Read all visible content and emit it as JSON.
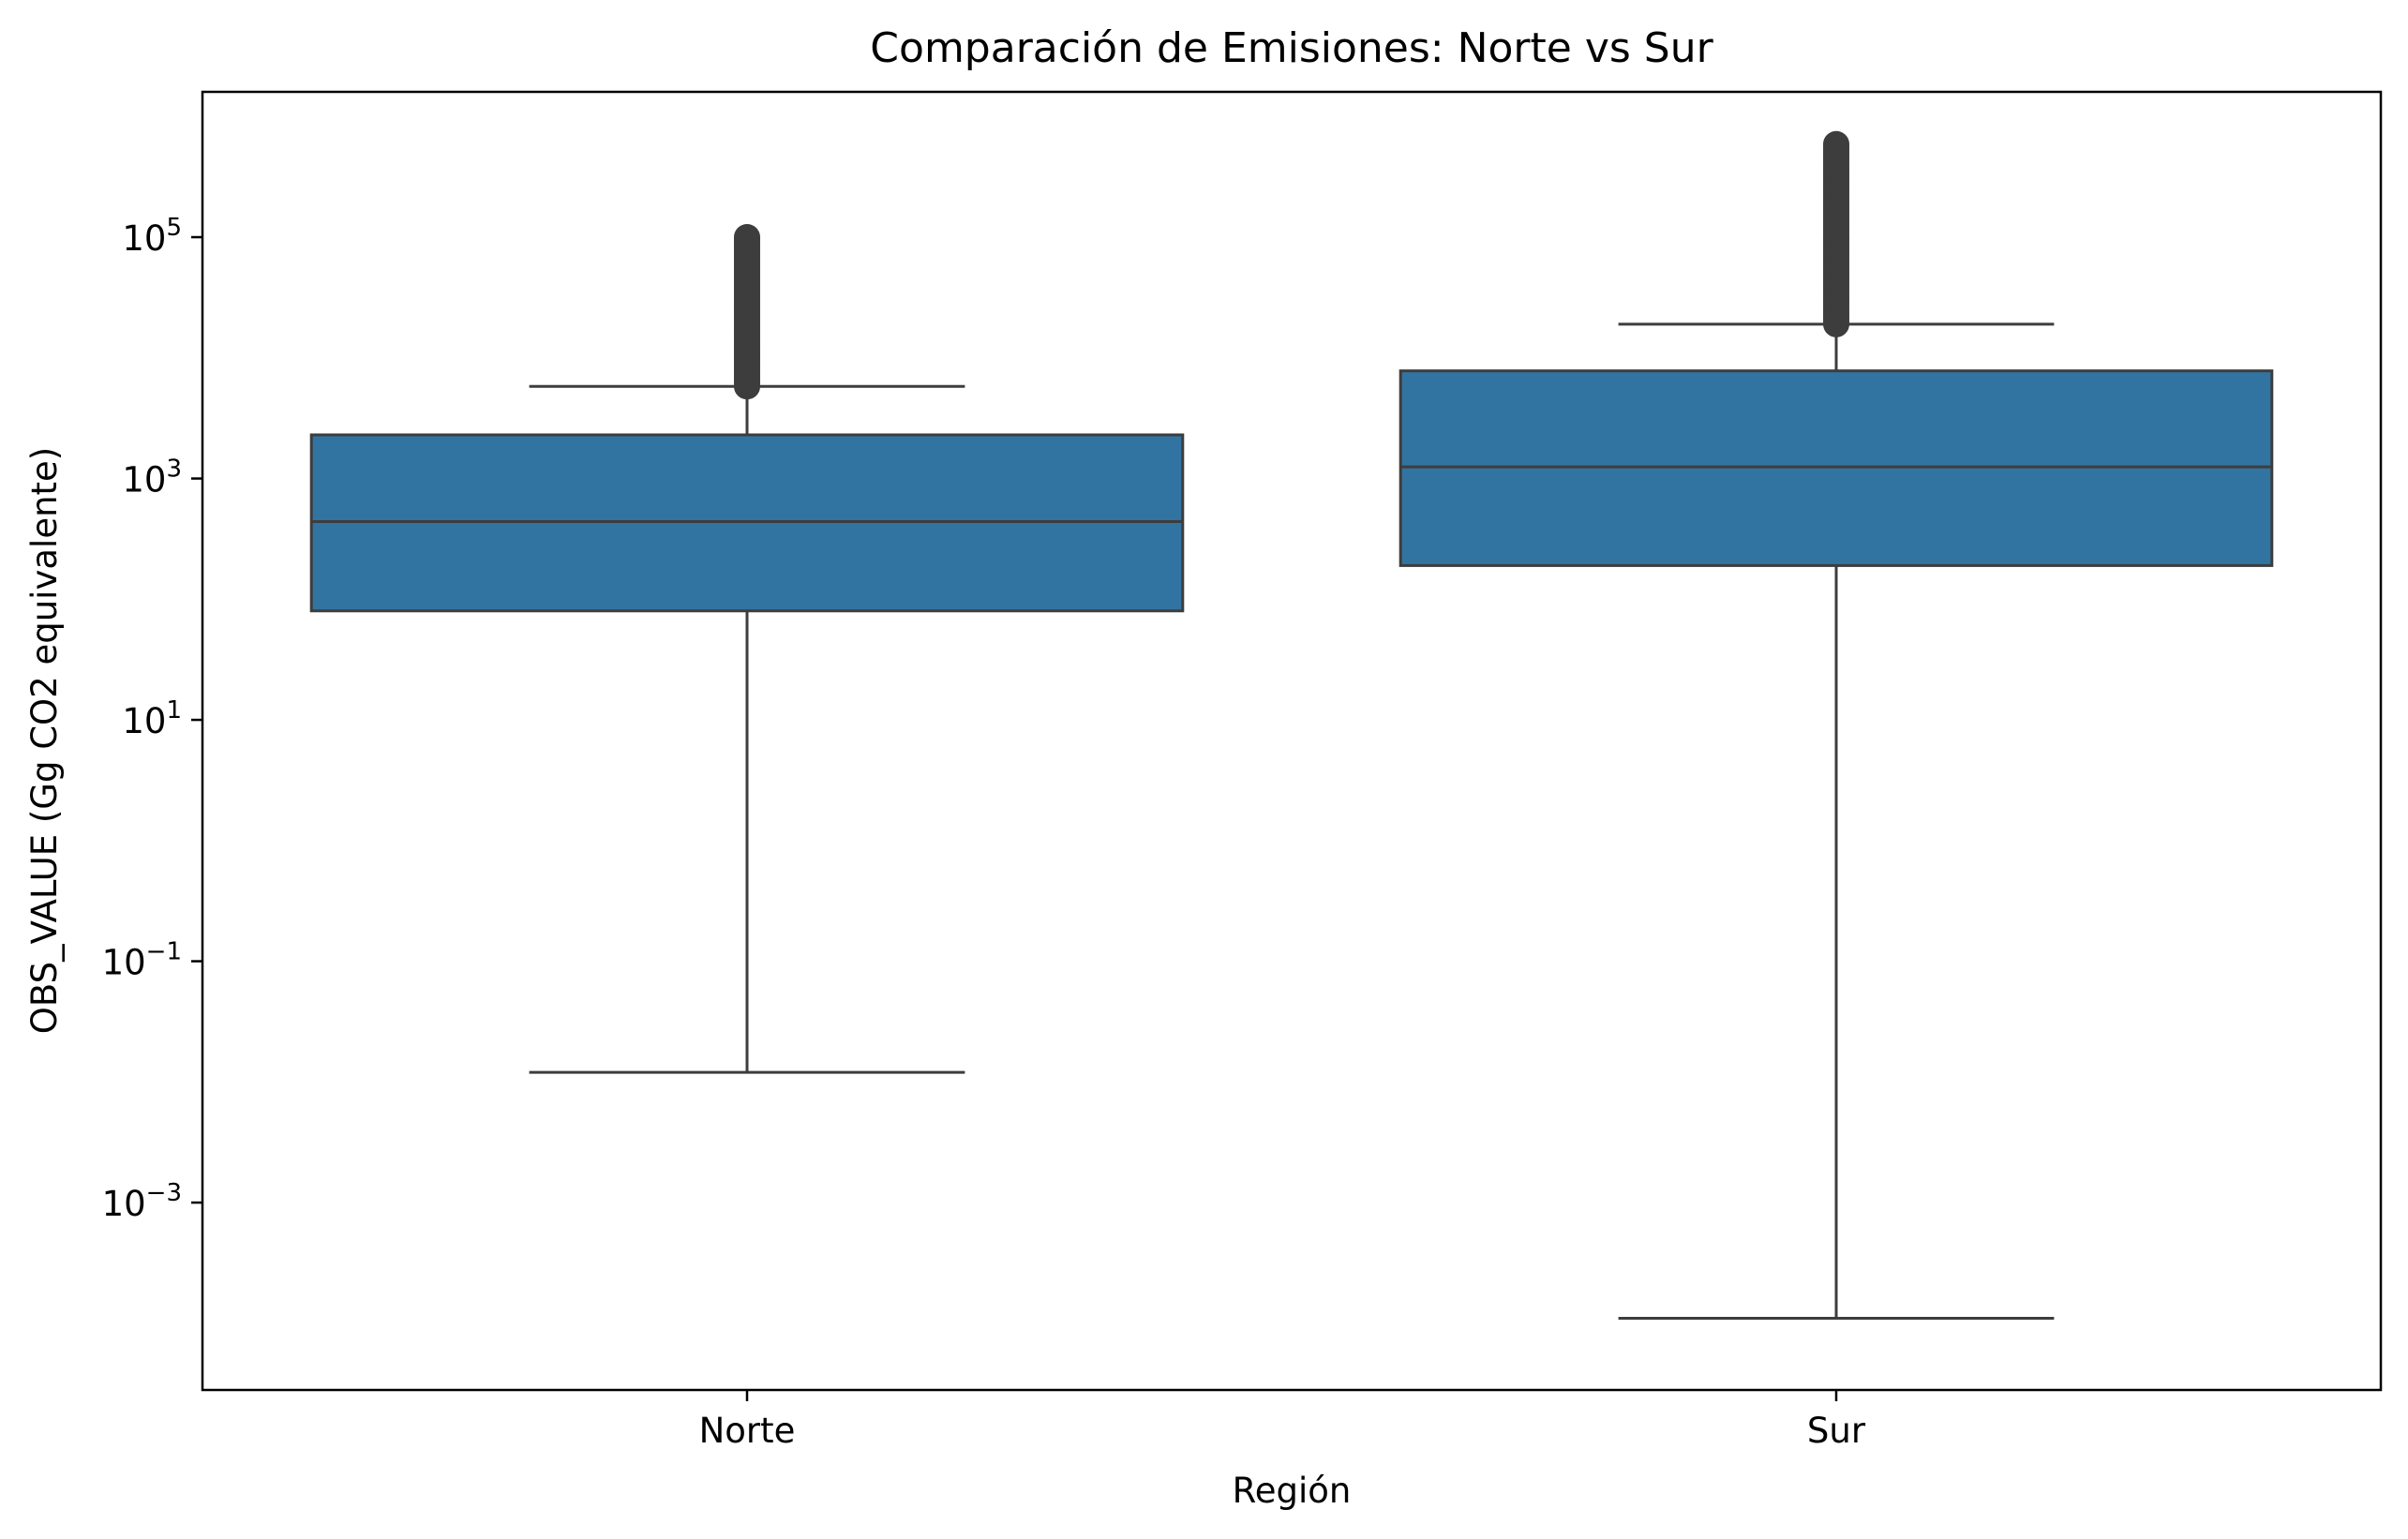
{
  "chart_data": {
    "type": "box",
    "title": "Comparación de Emisiones: Norte vs Sur",
    "xlabel": "Región",
    "ylabel": "OBS_VALUE (Gg CO2 equivalente)",
    "yscale": "log",
    "ylim": [
      2.8e-05,
      1600000
    ],
    "yticks": [
      {
        "value": 0.001,
        "base": "10",
        "exp": "−3"
      },
      {
        "value": 0.1,
        "base": "10",
        "exp": "−1"
      },
      {
        "value": 10,
        "base": "10",
        "exp": "1"
      },
      {
        "value": 1000,
        "base": "10",
        "exp": "3"
      },
      {
        "value": 100000,
        "base": "10",
        "exp": "5"
      }
    ],
    "grid": false,
    "categories": [
      "Norte",
      "Sur"
    ],
    "box_color": "#3274a1",
    "line_color": "#3d3d3d",
    "boxes": [
      {
        "category": "Norte",
        "whisker_low": 0.012,
        "q1": 80,
        "median": 440,
        "q3": 2300,
        "whisker_high": 5800,
        "outliers_range": [
          5800,
          100000
        ]
      },
      {
        "category": "Sur",
        "whisker_low": 0.00011,
        "q1": 190,
        "median": 1250,
        "q3": 7800,
        "whisker_high": 19000,
        "outliers_range": [
          19000,
          590000
        ]
      }
    ]
  }
}
